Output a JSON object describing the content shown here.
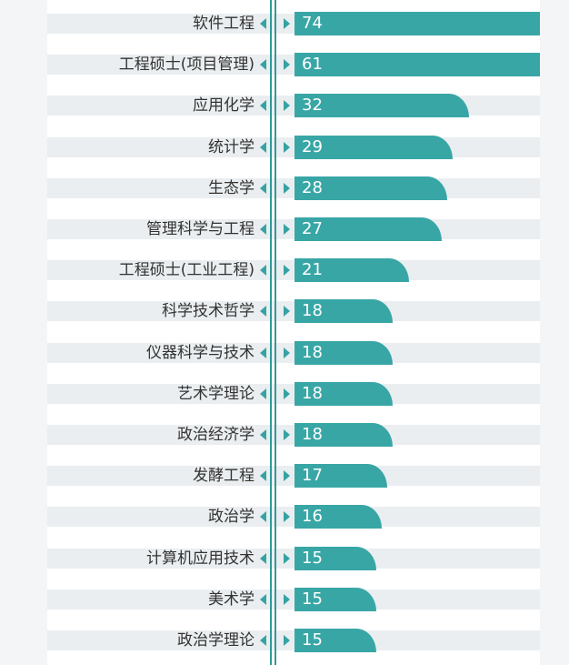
{
  "chart_data": {
    "type": "bar",
    "orientation": "horizontal",
    "categories": [
      "软件工程",
      "工程硕士(项目管理)",
      "应用化学",
      "统计学",
      "生态学",
      "管理科学与工程",
      "工程硕士(工业工程)",
      "科学技术哲学",
      "仪器科学与技术",
      "艺术学理论",
      "政治经济学",
      "发酵工程",
      "政治学",
      "计算机应用技术",
      "美术学",
      "政治学理论"
    ],
    "values": [
      74,
      61,
      32,
      29,
      28,
      27,
      21,
      18,
      18,
      18,
      18,
      17,
      16,
      15,
      15,
      15
    ],
    "title": "",
    "xlabel": "",
    "ylabel": "",
    "grid": false,
    "colors": {
      "bar": "#39a6a6",
      "arrow": "#35a3a3",
      "axis": "#2f9a9a",
      "band": "#eaeef0",
      "label": "#333333",
      "value": "#ffffff"
    }
  }
}
